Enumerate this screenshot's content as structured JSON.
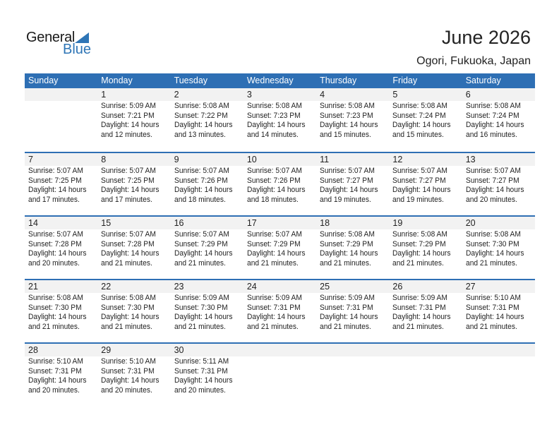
{
  "logo": {
    "general": "General",
    "blue": "Blue"
  },
  "title": "June 2026",
  "location": "Ogori, Fukuoka, Japan",
  "colors": {
    "accent": "#2e6fb4",
    "band": "#f2f2f2"
  },
  "weekdays": [
    "Sunday",
    "Monday",
    "Tuesday",
    "Wednesday",
    "Thursday",
    "Friday",
    "Saturday"
  ],
  "weeks": [
    [
      null,
      {
        "day": "1",
        "sunrise": "Sunrise: 5:09 AM",
        "sunset": "Sunset: 7:21 PM",
        "daylight1": "Daylight: 14 hours",
        "daylight2": "and 12 minutes."
      },
      {
        "day": "2",
        "sunrise": "Sunrise: 5:08 AM",
        "sunset": "Sunset: 7:22 PM",
        "daylight1": "Daylight: 14 hours",
        "daylight2": "and 13 minutes."
      },
      {
        "day": "3",
        "sunrise": "Sunrise: 5:08 AM",
        "sunset": "Sunset: 7:23 PM",
        "daylight1": "Daylight: 14 hours",
        "daylight2": "and 14 minutes."
      },
      {
        "day": "4",
        "sunrise": "Sunrise: 5:08 AM",
        "sunset": "Sunset: 7:23 PM",
        "daylight1": "Daylight: 14 hours",
        "daylight2": "and 15 minutes."
      },
      {
        "day": "5",
        "sunrise": "Sunrise: 5:08 AM",
        "sunset": "Sunset: 7:24 PM",
        "daylight1": "Daylight: 14 hours",
        "daylight2": "and 15 minutes."
      },
      {
        "day": "6",
        "sunrise": "Sunrise: 5:08 AM",
        "sunset": "Sunset: 7:24 PM",
        "daylight1": "Daylight: 14 hours",
        "daylight2": "and 16 minutes."
      }
    ],
    [
      {
        "day": "7",
        "sunrise": "Sunrise: 5:07 AM",
        "sunset": "Sunset: 7:25 PM",
        "daylight1": "Daylight: 14 hours",
        "daylight2": "and 17 minutes."
      },
      {
        "day": "8",
        "sunrise": "Sunrise: 5:07 AM",
        "sunset": "Sunset: 7:25 PM",
        "daylight1": "Daylight: 14 hours",
        "daylight2": "and 17 minutes."
      },
      {
        "day": "9",
        "sunrise": "Sunrise: 5:07 AM",
        "sunset": "Sunset: 7:26 PM",
        "daylight1": "Daylight: 14 hours",
        "daylight2": "and 18 minutes."
      },
      {
        "day": "10",
        "sunrise": "Sunrise: 5:07 AM",
        "sunset": "Sunset: 7:26 PM",
        "daylight1": "Daylight: 14 hours",
        "daylight2": "and 18 minutes."
      },
      {
        "day": "11",
        "sunrise": "Sunrise: 5:07 AM",
        "sunset": "Sunset: 7:27 PM",
        "daylight1": "Daylight: 14 hours",
        "daylight2": "and 19 minutes."
      },
      {
        "day": "12",
        "sunrise": "Sunrise: 5:07 AM",
        "sunset": "Sunset: 7:27 PM",
        "daylight1": "Daylight: 14 hours",
        "daylight2": "and 19 minutes."
      },
      {
        "day": "13",
        "sunrise": "Sunrise: 5:07 AM",
        "sunset": "Sunset: 7:27 PM",
        "daylight1": "Daylight: 14 hours",
        "daylight2": "and 20 minutes."
      }
    ],
    [
      {
        "day": "14",
        "sunrise": "Sunrise: 5:07 AM",
        "sunset": "Sunset: 7:28 PM",
        "daylight1": "Daylight: 14 hours",
        "daylight2": "and 20 minutes."
      },
      {
        "day": "15",
        "sunrise": "Sunrise: 5:07 AM",
        "sunset": "Sunset: 7:28 PM",
        "daylight1": "Daylight: 14 hours",
        "daylight2": "and 21 minutes."
      },
      {
        "day": "16",
        "sunrise": "Sunrise: 5:07 AM",
        "sunset": "Sunset: 7:29 PM",
        "daylight1": "Daylight: 14 hours",
        "daylight2": "and 21 minutes."
      },
      {
        "day": "17",
        "sunrise": "Sunrise: 5:07 AM",
        "sunset": "Sunset: 7:29 PM",
        "daylight1": "Daylight: 14 hours",
        "daylight2": "and 21 minutes."
      },
      {
        "day": "18",
        "sunrise": "Sunrise: 5:08 AM",
        "sunset": "Sunset: 7:29 PM",
        "daylight1": "Daylight: 14 hours",
        "daylight2": "and 21 minutes."
      },
      {
        "day": "19",
        "sunrise": "Sunrise: 5:08 AM",
        "sunset": "Sunset: 7:29 PM",
        "daylight1": "Daylight: 14 hours",
        "daylight2": "and 21 minutes."
      },
      {
        "day": "20",
        "sunrise": "Sunrise: 5:08 AM",
        "sunset": "Sunset: 7:30 PM",
        "daylight1": "Daylight: 14 hours",
        "daylight2": "and 21 minutes."
      }
    ],
    [
      {
        "day": "21",
        "sunrise": "Sunrise: 5:08 AM",
        "sunset": "Sunset: 7:30 PM",
        "daylight1": "Daylight: 14 hours",
        "daylight2": "and 21 minutes."
      },
      {
        "day": "22",
        "sunrise": "Sunrise: 5:08 AM",
        "sunset": "Sunset: 7:30 PM",
        "daylight1": "Daylight: 14 hours",
        "daylight2": "and 21 minutes."
      },
      {
        "day": "23",
        "sunrise": "Sunrise: 5:09 AM",
        "sunset": "Sunset: 7:30 PM",
        "daylight1": "Daylight: 14 hours",
        "daylight2": "and 21 minutes."
      },
      {
        "day": "24",
        "sunrise": "Sunrise: 5:09 AM",
        "sunset": "Sunset: 7:31 PM",
        "daylight1": "Daylight: 14 hours",
        "daylight2": "and 21 minutes."
      },
      {
        "day": "25",
        "sunrise": "Sunrise: 5:09 AM",
        "sunset": "Sunset: 7:31 PM",
        "daylight1": "Daylight: 14 hours",
        "daylight2": "and 21 minutes."
      },
      {
        "day": "26",
        "sunrise": "Sunrise: 5:09 AM",
        "sunset": "Sunset: 7:31 PM",
        "daylight1": "Daylight: 14 hours",
        "daylight2": "and 21 minutes."
      },
      {
        "day": "27",
        "sunrise": "Sunrise: 5:10 AM",
        "sunset": "Sunset: 7:31 PM",
        "daylight1": "Daylight: 14 hours",
        "daylight2": "and 21 minutes."
      }
    ],
    [
      {
        "day": "28",
        "sunrise": "Sunrise: 5:10 AM",
        "sunset": "Sunset: 7:31 PM",
        "daylight1": "Daylight: 14 hours",
        "daylight2": "and 20 minutes."
      },
      {
        "day": "29",
        "sunrise": "Sunrise: 5:10 AM",
        "sunset": "Sunset: 7:31 PM",
        "daylight1": "Daylight: 14 hours",
        "daylight2": "and 20 minutes."
      },
      {
        "day": "30",
        "sunrise": "Sunrise: 5:11 AM",
        "sunset": "Sunset: 7:31 PM",
        "daylight1": "Daylight: 14 hours",
        "daylight2": "and 20 minutes."
      },
      null,
      null,
      null,
      null
    ]
  ]
}
